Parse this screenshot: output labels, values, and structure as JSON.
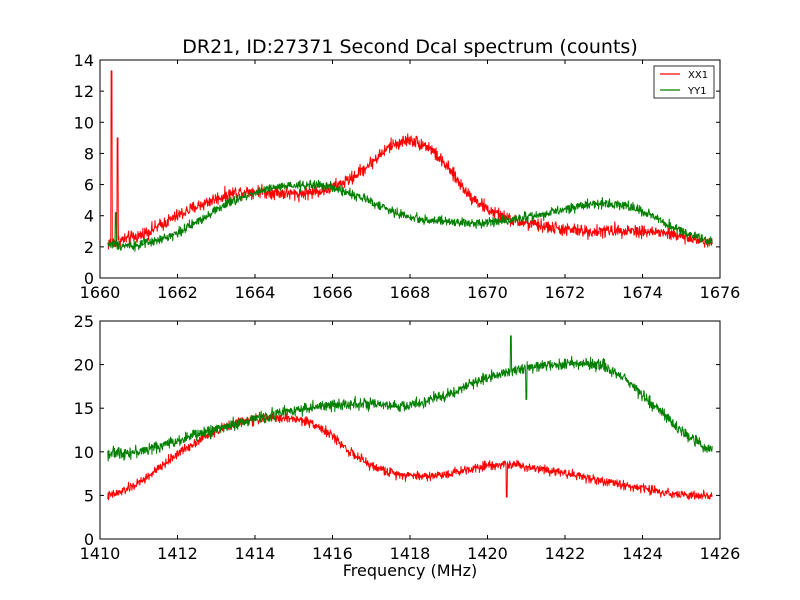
{
  "title": "DR21, ID:27371 Second Dcal spectrum (counts)",
  "colors": {
    "xx": "#ff0000",
    "yy": "#008000"
  },
  "chart_data": [
    {
      "type": "line",
      "title": "DR21, ID:27371 Second Dcal spectrum (counts)",
      "xlabel": "",
      "ylabel": "",
      "xlim": [
        1660,
        1676
      ],
      "ylim": [
        0,
        14
      ],
      "xticks": [
        "1660",
        "1662",
        "1664",
        "1666",
        "1668",
        "1670",
        "1672",
        "1674",
        "1676"
      ],
      "yticks": [
        "0",
        "2",
        "4",
        "6",
        "8",
        "10",
        "12",
        "14"
      ],
      "legend": {
        "placement": "top-right",
        "entries": [
          "XX1",
          "YY1"
        ]
      },
      "series": [
        {
          "name": "XX1",
          "color": "#ff0000",
          "noise": 0.35,
          "spikes": [
            [
              1660.3,
              13.3
            ],
            [
              1660.45,
              9.0
            ]
          ],
          "x": [
            1660.2,
            1660.5,
            1661,
            1661.5,
            1662,
            1662.5,
            1663,
            1663.5,
            1664,
            1664.5,
            1665,
            1665.5,
            1666,
            1666.5,
            1667,
            1667.5,
            1668,
            1668.5,
            1669,
            1669.5,
            1670,
            1670.5,
            1671,
            1671.5,
            1672,
            1672.5,
            1673,
            1673.5,
            1674,
            1674.5,
            1675,
            1675.5,
            1675.8
          ],
          "y": [
            2.2,
            2.4,
            2.7,
            3.3,
            4.0,
            4.6,
            5.1,
            5.5,
            5.6,
            5.5,
            5.4,
            5.5,
            5.8,
            6.4,
            7.4,
            8.5,
            8.9,
            8.4,
            7.0,
            5.4,
            4.4,
            3.8,
            3.5,
            3.3,
            3.1,
            3.0,
            3.0,
            3.1,
            3.0,
            2.9,
            2.7,
            2.4,
            2.3
          ]
        },
        {
          "name": "YY1",
          "color": "#008000",
          "noise": 0.25,
          "spikes": [
            [
              1660.4,
              4.2
            ]
          ],
          "x": [
            1660.2,
            1660.5,
            1661,
            1661.5,
            1662,
            1662.5,
            1663,
            1663.5,
            1664,
            1664.5,
            1665,
            1665.5,
            1666,
            1666.5,
            1667,
            1667.5,
            1668,
            1668.5,
            1669,
            1669.5,
            1670,
            1670.5,
            1671,
            1671.5,
            1672,
            1672.5,
            1673,
            1673.5,
            1674,
            1674.5,
            1675,
            1675.5,
            1675.8
          ],
          "y": [
            2.2,
            2.1,
            2.1,
            2.4,
            2.9,
            3.6,
            4.4,
            5.0,
            5.5,
            5.8,
            5.9,
            6.0,
            5.8,
            5.4,
            4.9,
            4.3,
            3.9,
            3.7,
            3.6,
            3.5,
            3.6,
            3.7,
            3.9,
            4.1,
            4.4,
            4.7,
            4.8,
            4.7,
            4.3,
            3.6,
            3.0,
            2.5,
            2.3
          ]
        }
      ]
    },
    {
      "type": "line",
      "title": "",
      "xlabel": "Frequency (MHz)",
      "ylabel": "",
      "xlim": [
        1410,
        1426
      ],
      "ylim": [
        0,
        25
      ],
      "xticks": [
        "1410",
        "1412",
        "1414",
        "1416",
        "1418",
        "1420",
        "1422",
        "1424",
        "1426"
      ],
      "yticks": [
        "0",
        "5",
        "10",
        "15",
        "20",
        "25"
      ],
      "series": [
        {
          "name": "XX1",
          "color": "#ff0000",
          "noise": 0.45,
          "spikes": [
            [
              1420.5,
              4.8
            ]
          ],
          "x": [
            1410.2,
            1410.5,
            1411,
            1411.5,
            1412,
            1412.5,
            1413,
            1413.5,
            1414,
            1414.5,
            1415,
            1415.5,
            1416,
            1416.5,
            1417,
            1417.5,
            1418,
            1418.5,
            1419,
            1419.5,
            1420,
            1420.5,
            1421,
            1421.5,
            1422,
            1422.5,
            1423,
            1423.5,
            1424,
            1424.5,
            1425,
            1425.5,
            1425.8
          ],
          "y": [
            4.9,
            5.3,
            6.4,
            8.0,
            9.8,
            11.2,
            12.4,
            13.3,
            13.7,
            13.9,
            13.8,
            13.3,
            11.8,
            9.8,
            8.4,
            7.6,
            7.3,
            7.2,
            7.5,
            8.0,
            8.5,
            8.6,
            8.3,
            8.0,
            7.6,
            7.1,
            6.6,
            6.2,
            5.8,
            5.4,
            5.1,
            4.9,
            4.8
          ]
        },
        {
          "name": "YY1",
          "color": "#008000",
          "noise": 0.55,
          "spikes": [
            [
              1420.6,
              23.3
            ],
            [
              1421.0,
              16.0
            ]
          ],
          "x": [
            1410.2,
            1410.5,
            1411,
            1411.5,
            1412,
            1412.5,
            1413,
            1413.5,
            1414,
            1414.5,
            1415,
            1415.5,
            1416,
            1416.5,
            1417,
            1417.5,
            1418,
            1418.5,
            1419,
            1419.5,
            1420,
            1420.5,
            1421,
            1421.5,
            1422,
            1422.5,
            1423,
            1423.5,
            1424,
            1424.5,
            1425,
            1425.5,
            1425.8
          ],
          "y": [
            9.8,
            9.9,
            10.0,
            10.6,
            11.3,
            12.0,
            12.6,
            13.2,
            13.8,
            14.3,
            14.8,
            15.1,
            15.3,
            15.6,
            15.4,
            15.2,
            15.3,
            15.9,
            16.6,
            17.6,
            18.6,
            19.2,
            19.6,
            19.9,
            20.1,
            20.2,
            19.8,
            18.6,
            16.6,
            14.4,
            12.4,
            10.8,
            10.2
          ]
        }
      ]
    }
  ]
}
